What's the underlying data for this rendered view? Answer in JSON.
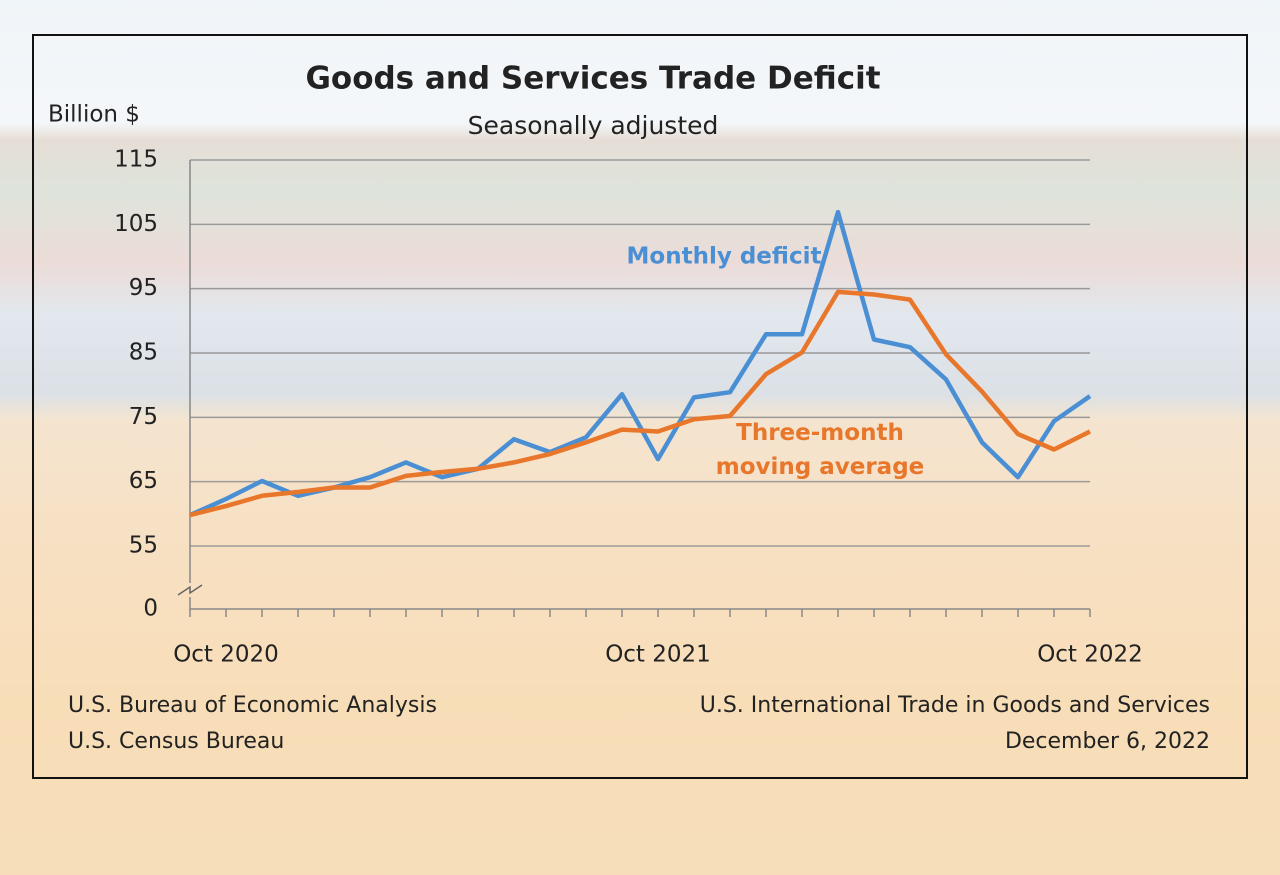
{
  "chart_data": {
    "type": "line",
    "title": "Goods and Services Trade Deficit",
    "subtitle": "Seasonally adjusted",
    "y_label": "Billion $",
    "categories": [
      null,
      "Oct 2020",
      null,
      null,
      null,
      null,
      null,
      null,
      null,
      null,
      null,
      null,
      null,
      "Oct 2021",
      null,
      null,
      null,
      null,
      null,
      null,
      null,
      null,
      null,
      null,
      null,
      "Oct 2022"
    ],
    "series": [
      {
        "name": "Monthly deficit",
        "color": "#4a8fd4",
        "values": [
          59.8,
          62.3,
          65.1,
          62.8,
          64.1,
          65.7,
          68.0,
          65.7,
          67.0,
          71.6,
          69.6,
          71.9,
          78.6,
          68.5,
          78.1,
          78.9,
          87.9,
          87.9,
          106.9,
          87.1,
          85.9,
          80.9,
          71.1,
          65.7,
          74.4,
          78.3
        ]
      },
      {
        "name": "Three-month moving average",
        "color": "#e8762b",
        "values": [
          59.8,
          61.2,
          62.8,
          63.4,
          64.1,
          64.1,
          65.9,
          66.5,
          67.0,
          68.0,
          69.3,
          71.1,
          73.1,
          72.8,
          74.7,
          75.2,
          81.7,
          85.1,
          94.5,
          94.1,
          93.3,
          84.8,
          79.0,
          72.4,
          70.0,
          72.8
        ]
      }
    ],
    "ylim": [
      0,
      115
    ],
    "yticks": [
      0,
      55,
      65,
      75,
      85,
      95,
      105,
      115
    ],
    "axis_break": true,
    "grid": true,
    "sources": [
      "U.S. Bureau of Economic Analysis",
      "U.S. Census Bureau"
    ],
    "release": [
      "U.S. International Trade in Goods and Services",
      "December 6, 2022"
    ]
  }
}
